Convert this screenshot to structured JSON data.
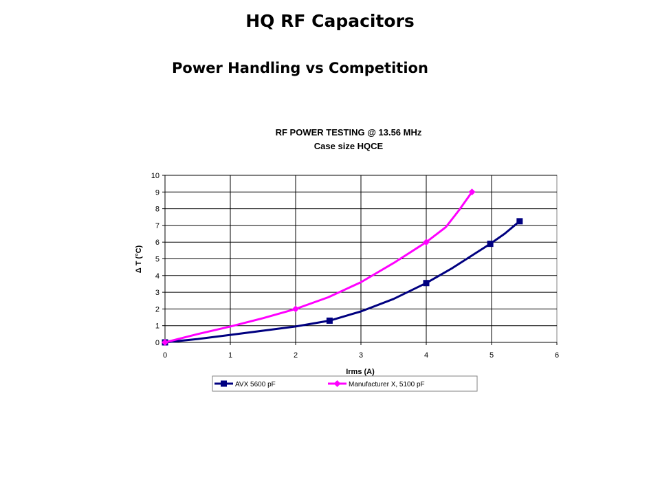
{
  "slide": {
    "title": "HQ RF Capacitors",
    "subtitle": "Power Handling vs Competition"
  },
  "chart_data": {
    "type": "line",
    "title": "RF POWER TESTING @ 13.56 MHz",
    "subtitle": "Case size HQCE",
    "xlabel": "Irms (A)",
    "ylabel": "Δ T (°C)",
    "xlim": [
      0,
      6
    ],
    "ylim": [
      0,
      10
    ],
    "xticks": [
      0,
      1,
      2,
      3,
      4,
      5,
      6
    ],
    "yticks": [
      0,
      1,
      2,
      3,
      4,
      5,
      6,
      7,
      8,
      9,
      10
    ],
    "grid": true,
    "legend": "bottom",
    "series": [
      {
        "name": "AVX 5600 pF",
        "color": "#000080",
        "marker": "square",
        "points": [
          [
            0,
            0
          ],
          [
            2.52,
            1.3
          ],
          [
            4.0,
            3.55
          ],
          [
            4.98,
            5.9
          ],
          [
            5.43,
            7.25
          ]
        ],
        "curve": [
          [
            0,
            0
          ],
          [
            0.5,
            0.2
          ],
          [
            1.0,
            0.45
          ],
          [
            1.5,
            0.7
          ],
          [
            2.0,
            0.95
          ],
          [
            2.52,
            1.3
          ],
          [
            3.0,
            1.85
          ],
          [
            3.5,
            2.6
          ],
          [
            4.0,
            3.55
          ],
          [
            4.4,
            4.45
          ],
          [
            4.7,
            5.2
          ],
          [
            4.98,
            5.9
          ],
          [
            5.2,
            6.5
          ],
          [
            5.43,
            7.25
          ]
        ]
      },
      {
        "name": "Manufacturer X, 5100 pF",
        "color": "#ff00ff",
        "marker": "diamond",
        "points": [
          [
            0,
            0
          ],
          [
            2.0,
            2.0
          ],
          [
            4.0,
            6.0
          ],
          [
            4.7,
            9.0
          ]
        ],
        "curve": [
          [
            0,
            0
          ],
          [
            0.5,
            0.5
          ],
          [
            1.0,
            0.95
          ],
          [
            1.5,
            1.45
          ],
          [
            2.0,
            2.0
          ],
          [
            2.5,
            2.7
          ],
          [
            3.0,
            3.6
          ],
          [
            3.5,
            4.75
          ],
          [
            4.0,
            6.0
          ],
          [
            4.3,
            6.9
          ],
          [
            4.5,
            7.9
          ],
          [
            4.7,
            9.0
          ]
        ]
      }
    ]
  }
}
